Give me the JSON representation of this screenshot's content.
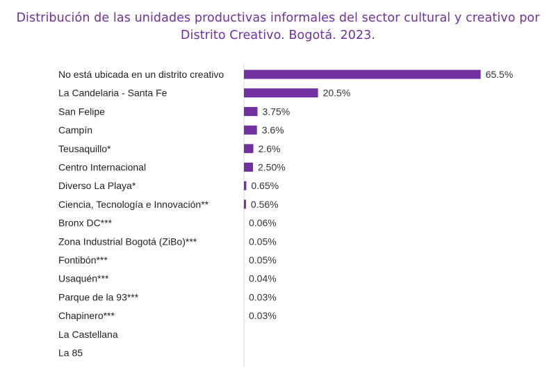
{
  "title_line1": "Distribución de las unidades productivas informales del sector cultural y creativo por",
  "title_line2": "Distrito Creativo. Bogotá. 2023.",
  "chart_data": {
    "type": "bar",
    "orientation": "horizontal",
    "title": "Distribución de las unidades productivas informales del sector cultural y creativo por Distrito Creativo. Bogotá. 2023.",
    "categories": [
      "No está ubicada en un distrito creativo",
      "La Candelaria - Santa Fe",
      "San Felipe",
      "Campín",
      "Teusaquillo*",
      "Centro Internacional",
      "Diverso La Playa*",
      "Ciencia, Tecnología e Innovación**",
      "Bronx DC***",
      "Zona Industrial Bogotá (ZiBo)***",
      "Fontibón***",
      "Usaquén***",
      "Parque de la 93***",
      "Chapinero***",
      "La Castellana",
      "La 85"
    ],
    "values": [
      65.5,
      20.5,
      3.75,
      3.6,
      2.6,
      2.5,
      0.65,
      0.56,
      0.06,
      0.05,
      0.05,
      0.04,
      0.03,
      0.03,
      null,
      null
    ],
    "value_labels": [
      "65.5%",
      "20.5%",
      "3.75%",
      "3.6%",
      "2.6%",
      "2.50%",
      "0.65%",
      "0.56%",
      "0.06%",
      "0.05%",
      "0.05%",
      "0.04%",
      "0.03%",
      "0.03%",
      "",
      ""
    ],
    "unit": "%",
    "xlim": [
      0,
      70
    ],
    "bar_color": "#7030a0",
    "axis_color": "#d9d9d9",
    "grid": false,
    "legend": false
  }
}
